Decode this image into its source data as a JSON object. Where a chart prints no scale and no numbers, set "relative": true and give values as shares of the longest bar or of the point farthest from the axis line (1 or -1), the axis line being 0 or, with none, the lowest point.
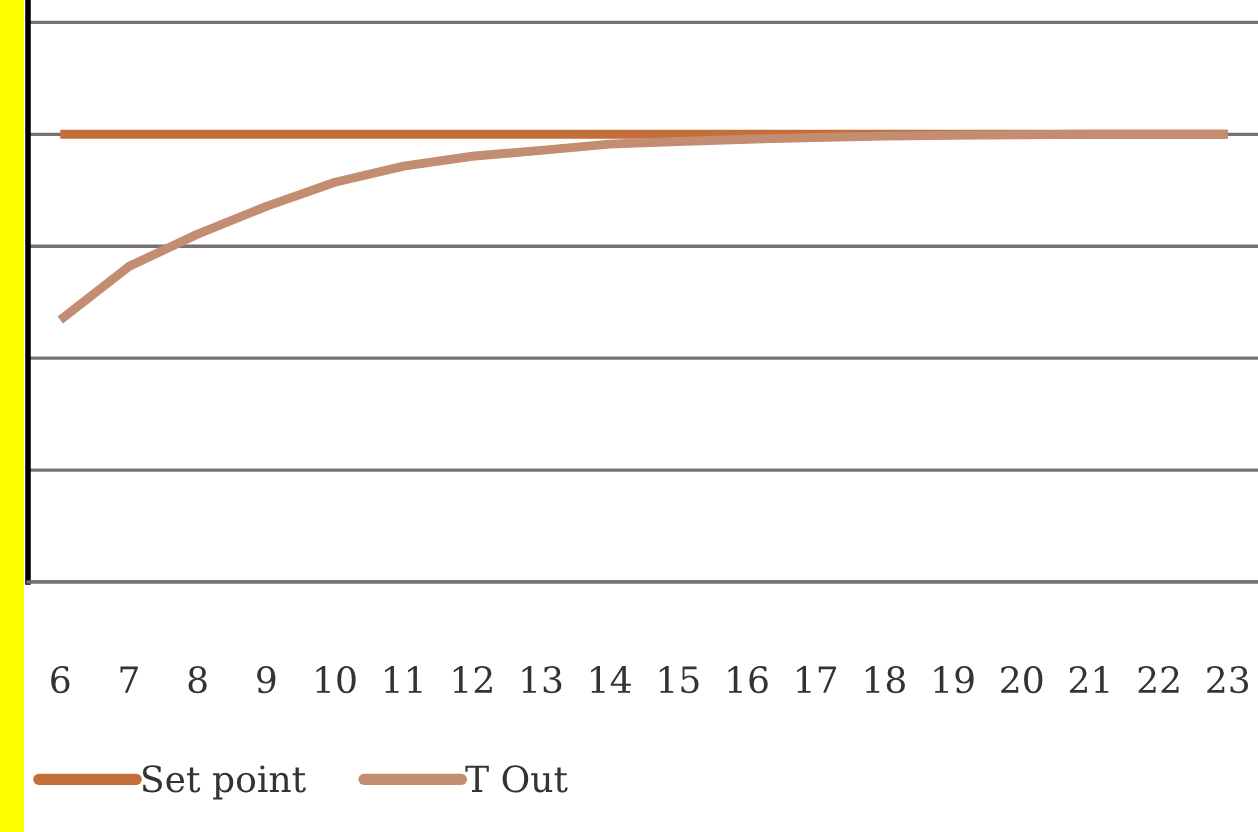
{
  "chart_data": {
    "type": "line",
    "relative": true,
    "grid": "y",
    "legend": "bottom",
    "marker": "none",
    "line_style": "solid",
    "categories": [
      "6",
      "7",
      "8",
      "9",
      "10",
      "11",
      "12",
      "13",
      "14",
      "15",
      "16",
      "17",
      "18",
      "19",
      "20",
      "21",
      "22",
      "23"
    ],
    "series": [
      {
        "name": "Set point",
        "color": "#c46e3a",
        "values": [
          1,
          1,
          1,
          1,
          1,
          1,
          1,
          1,
          1,
          1,
          1,
          1,
          1,
          1,
          1,
          1,
          1,
          1
        ]
      },
      {
        "name": "T Out",
        "color": "#c38d72",
        "values": [
          0.585,
          0.705,
          0.777,
          0.839,
          0.893,
          0.929,
          0.951,
          0.964,
          0.978,
          0.984,
          0.989,
          0.993,
          0.996,
          0.998,
          0.999,
          1,
          1,
          1
        ]
      }
    ]
  }
}
